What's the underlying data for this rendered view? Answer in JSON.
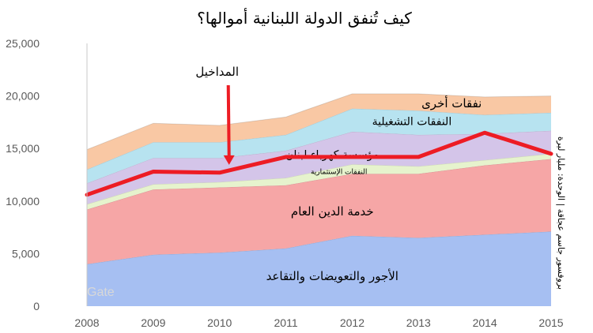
{
  "chart_data": {
    "type": "area",
    "title": "كيف تُنفق الدولة اللبنانية أموالها؟",
    "ylabel": "بروفسور جاسم عجاقة | الوحدة: مليار ليرة",
    "x": [
      "2008",
      "2009",
      "2010",
      "2011",
      "2012",
      "2013",
      "2014",
      "2015"
    ],
    "ylim": [
      0,
      25000
    ],
    "yticks": [
      0,
      5000,
      10000,
      15000,
      20000,
      25000
    ],
    "ytick_labels": [
      "0",
      "5,000",
      "10,000",
      "15,000",
      "20,000",
      "25,000"
    ],
    "grid": false,
    "stacked": true,
    "series": [
      {
        "name": "الأجور والتعويضات والتقاعد",
        "color": "#a6bff2",
        "values": [
          4000,
          4900,
          5100,
          5500,
          6700,
          6500,
          6800,
          7100
        ]
      },
      {
        "name": "خدمة الدين العام",
        "color": "#f6a6a6",
        "values": [
          5200,
          6200,
          6200,
          6000,
          5900,
          6100,
          6600,
          6900
        ]
      },
      {
        "name": "النفقات الإستثمارية",
        "color": "#e6f3cd",
        "values": [
          500,
          500,
          500,
          700,
          900,
          700,
          500,
          500
        ]
      },
      {
        "name": "مؤسسة كهرباء لبنان",
        "color": "#d4c5e9",
        "values": [
          2000,
          2500,
          2300,
          2600,
          3100,
          3000,
          2500,
          2200
        ]
      },
      {
        "name": "النفقات التشغيلية",
        "color": "#b7e3f0",
        "values": [
          1300,
          1500,
          1500,
          1500,
          2200,
          2300,
          1800,
          1700
        ]
      },
      {
        "name": "نفقات أخرى",
        "color": "#f9c8a4",
        "values": [
          1900,
          1800,
          1600,
          1700,
          1400,
          1600,
          1700,
          1600
        ]
      }
    ],
    "overlay": {
      "name": "المداخيل",
      "color": "#ed1c24",
      "values": [
        10600,
        12800,
        12700,
        14200,
        14200,
        14200,
        16500,
        14500
      ]
    },
    "annotations": [
      {
        "text": "المداخيل",
        "arrow": "down",
        "x": "2010"
      }
    ]
  },
  "watermark": "Gate"
}
